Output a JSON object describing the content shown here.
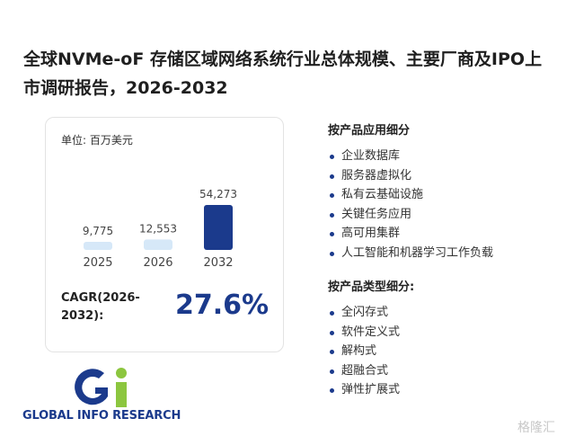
{
  "chart_data": {
    "type": "bar",
    "title": "全球NVMe-oF 存储区域网络系统行业总体规模、主要厂商及IPO上市调研报告，2026-2032",
    "unit": "单位: 百万美元",
    "categories": [
      "2025",
      "2026",
      "2032"
    ],
    "values": [
      9775,
      12553,
      54273
    ],
    "value_labels": [
      "9,775",
      "12,553",
      "54,273"
    ],
    "colors": [
      "#d6e8f8",
      "#d6e8f8",
      "#1b3a8c"
    ]
  },
  "cagr": {
    "label": "CAGR(2026-2032):",
    "value": "27.6%"
  },
  "application_segments": {
    "heading": "按产品应用细分",
    "items": [
      "企业数据库",
      "服务器虚拟化",
      "私有云基础设施",
      "关键任务应用",
      "高可用集群",
      "人工智能和机器学习工作负载"
    ]
  },
  "type_segments": {
    "heading": "按产品类型细分:",
    "items": [
      "全闪存式",
      "软件定义式",
      "解构式",
      "超融合式",
      "弹性扩展式"
    ]
  },
  "logo": {
    "text": "GLOBAL INFO RESEARCH"
  },
  "watermark": "格隆汇"
}
